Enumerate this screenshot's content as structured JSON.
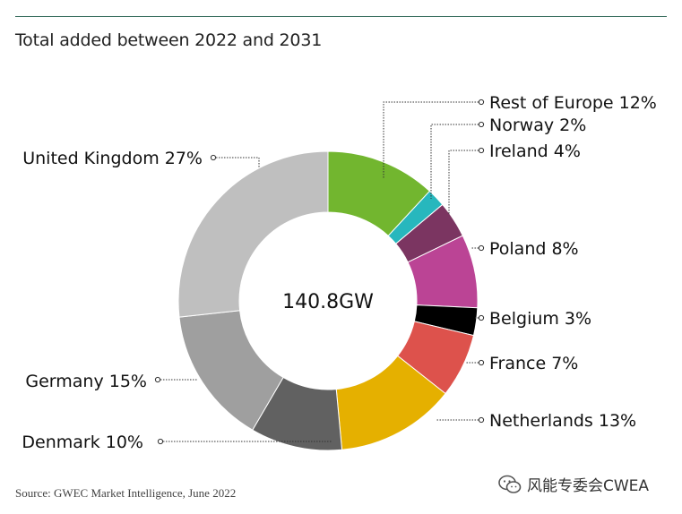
{
  "title": "Total added between 2022 and 2031",
  "source": "Source: GWEC Market Intelligence, June 2022",
  "watermark": "风能专委会CWEA",
  "chart_data": {
    "type": "pie",
    "style": "donut",
    "title": "Total added between 2022 and 2031",
    "center_label": "140.8GW",
    "slices": [
      {
        "name": "Rest of Europe",
        "label": "Rest of Europe 12%",
        "value": 12,
        "color": "#72b62f"
      },
      {
        "name": "Norway",
        "label": "Norway 2%",
        "value": 2,
        "color": "#27b7bd"
      },
      {
        "name": "Ireland",
        "label": "Ireland 4%",
        "value": 4,
        "color": "#7b3561"
      },
      {
        "name": "Poland",
        "label": "Poland 8%",
        "value": 8,
        "color": "#bb4495"
      },
      {
        "name": "Belgium",
        "label": "Belgium 3%",
        "value": 3,
        "color": "#000000"
      },
      {
        "name": "France",
        "label": "France 7%",
        "value": 7,
        "color": "#dd524c"
      },
      {
        "name": "Netherlands",
        "label": "Netherlands 13%",
        "value": 13,
        "color": "#e5b000"
      },
      {
        "name": "Denmark",
        "label": "Denmark 10%",
        "value": 10,
        "color": "#616161"
      },
      {
        "name": "Germany",
        "label": "Germany 15%",
        "value": 15,
        "color": "#9f9f9f"
      },
      {
        "name": "United Kingdom",
        "label": "United Kingdom 27%",
        "value": 27,
        "color": "#bfbfbf"
      }
    ]
  }
}
